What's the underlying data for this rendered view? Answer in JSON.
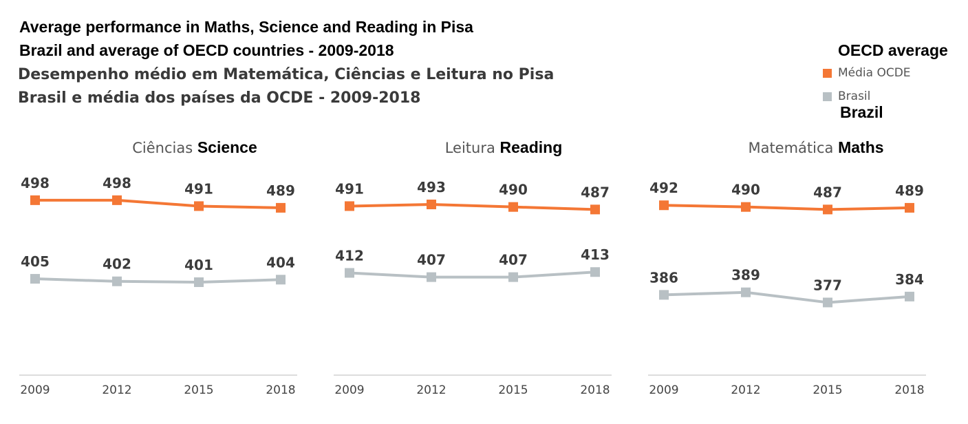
{
  "titles": {
    "en_line1": "Average performance in Maths, Science and Reading in Pisa",
    "en_line2": "Brazil and average of OECD countries - 2009-2018",
    "pt_line1": "Desempenho médio em Matemática, Ciências e Leitura no Pisa",
    "pt_line2": "Brasil e média dos países da OCDE - 2009-2018"
  },
  "legend": {
    "heading": "OECD average",
    "items": [
      {
        "label": "Média OCDE",
        "color": "#f47735"
      },
      {
        "label": "Brasil",
        "color": "#b8c0c4"
      }
    ],
    "footer": "Brazil"
  },
  "chart_data": [
    {
      "type": "line",
      "title_pt": "Ciências",
      "title_en": "Science",
      "categories": [
        "2009",
        "2012",
        "2015",
        "2018"
      ],
      "series": [
        {
          "name": "Média OCDE",
          "color": "#f47735",
          "values": [
            498,
            498,
            491,
            489
          ]
        },
        {
          "name": "Brasil",
          "color": "#b8c0c4",
          "values": [
            405,
            402,
            401,
            404
          ]
        }
      ]
    },
    {
      "type": "line",
      "title_pt": "Leitura",
      "title_en": "Reading",
      "categories": [
        "2009",
        "2012",
        "2015",
        "2018"
      ],
      "series": [
        {
          "name": "Média OCDE",
          "color": "#f47735",
          "values": [
            491,
            493,
            490,
            487
          ]
        },
        {
          "name": "Brasil",
          "color": "#b8c0c4",
          "values": [
            412,
            407,
            407,
            413
          ]
        }
      ]
    },
    {
      "type": "line",
      "title_pt": "Matemática",
      "title_en": "Maths",
      "categories": [
        "2009",
        "2012",
        "2015",
        "2018"
      ],
      "series": [
        {
          "name": "Média OCDE",
          "color": "#f47735",
          "values": [
            492,
            490,
            487,
            489
          ]
        },
        {
          "name": "Brasil",
          "color": "#b8c0c4",
          "values": [
            386,
            389,
            377,
            384
          ]
        }
      ]
    }
  ]
}
